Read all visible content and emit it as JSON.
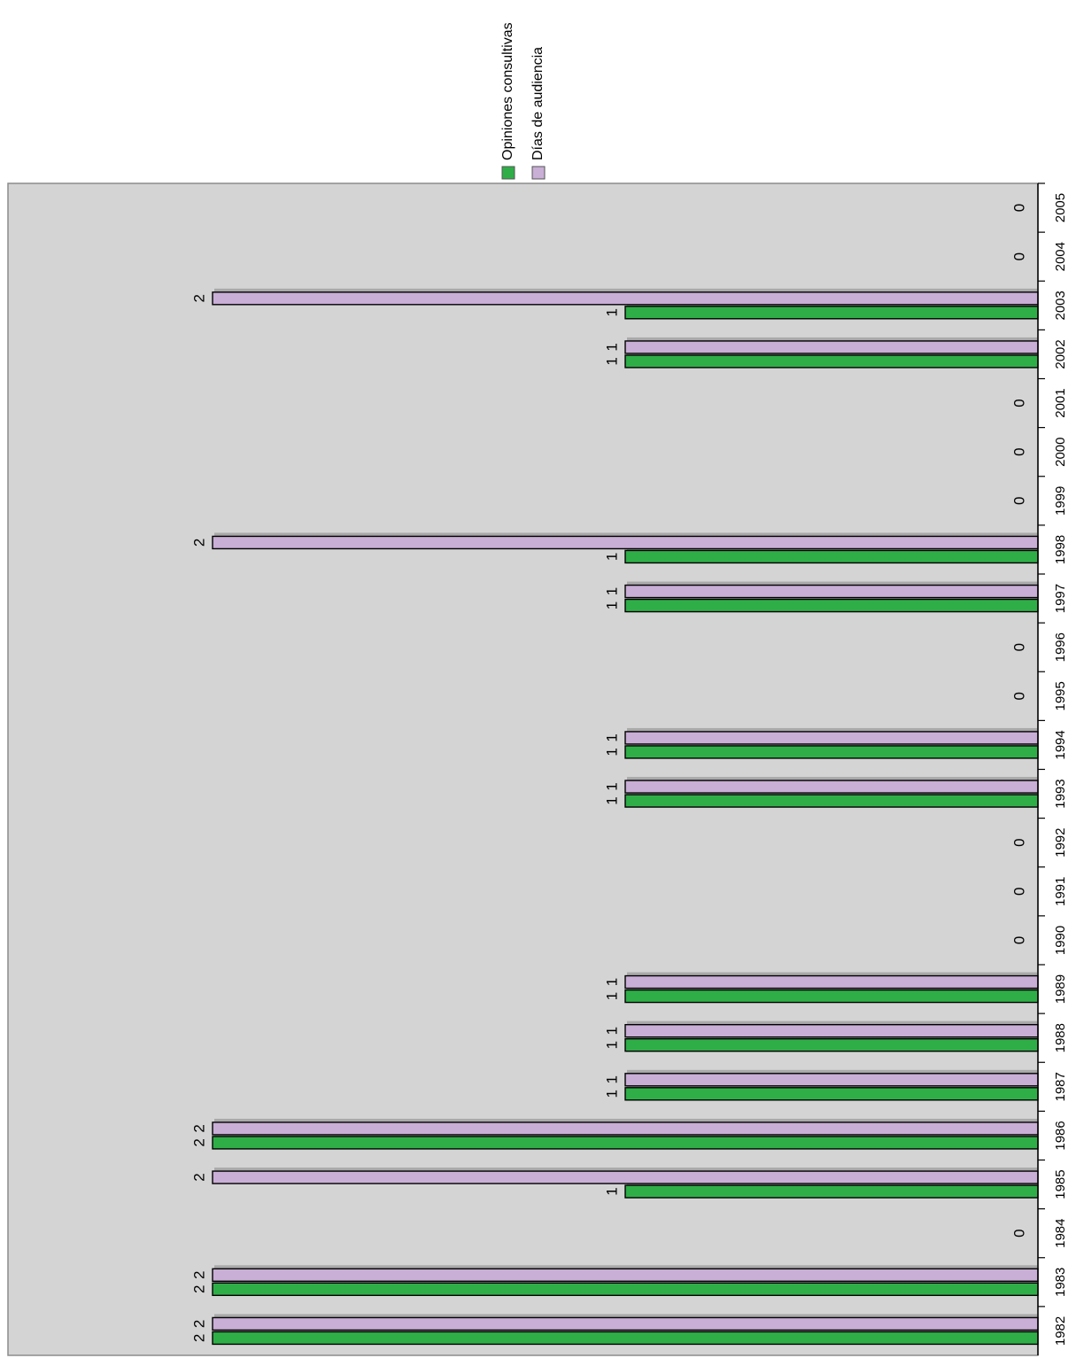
{
  "chart_data": {
    "type": "bar",
    "orientation": "rotated",
    "categories": [
      "1982",
      "1983",
      "1984",
      "1985",
      "1986",
      "1987",
      "1988",
      "1989",
      "1990",
      "1991",
      "1992",
      "1993",
      "1994",
      "1995",
      "1996",
      "1997",
      "1998",
      "1999",
      "2000",
      "2001",
      "2002",
      "2003",
      "2004",
      "2005"
    ],
    "series": [
      {
        "name": "Opiniones consultivas",
        "values": [
          2,
          2,
          0,
          1,
          2,
          1,
          1,
          1,
          0,
          0,
          0,
          1,
          1,
          0,
          0,
          1,
          1,
          0,
          0,
          0,
          1,
          1,
          0,
          0
        ],
        "color": "#2fae48"
      },
      {
        "name": "Días de audiencia",
        "values": [
          2,
          2,
          0,
          2,
          2,
          1,
          1,
          1,
          0,
          0,
          0,
          1,
          1,
          0,
          0,
          1,
          2,
          0,
          0,
          0,
          1,
          2,
          0,
          0
        ],
        "color": "#c9aed6"
      }
    ],
    "ylim": [
      0,
      2
    ],
    "grid": false,
    "legend": "top",
    "plot_background": "#d4d4d4",
    "title": "",
    "xlabel": "",
    "ylabel": ""
  }
}
